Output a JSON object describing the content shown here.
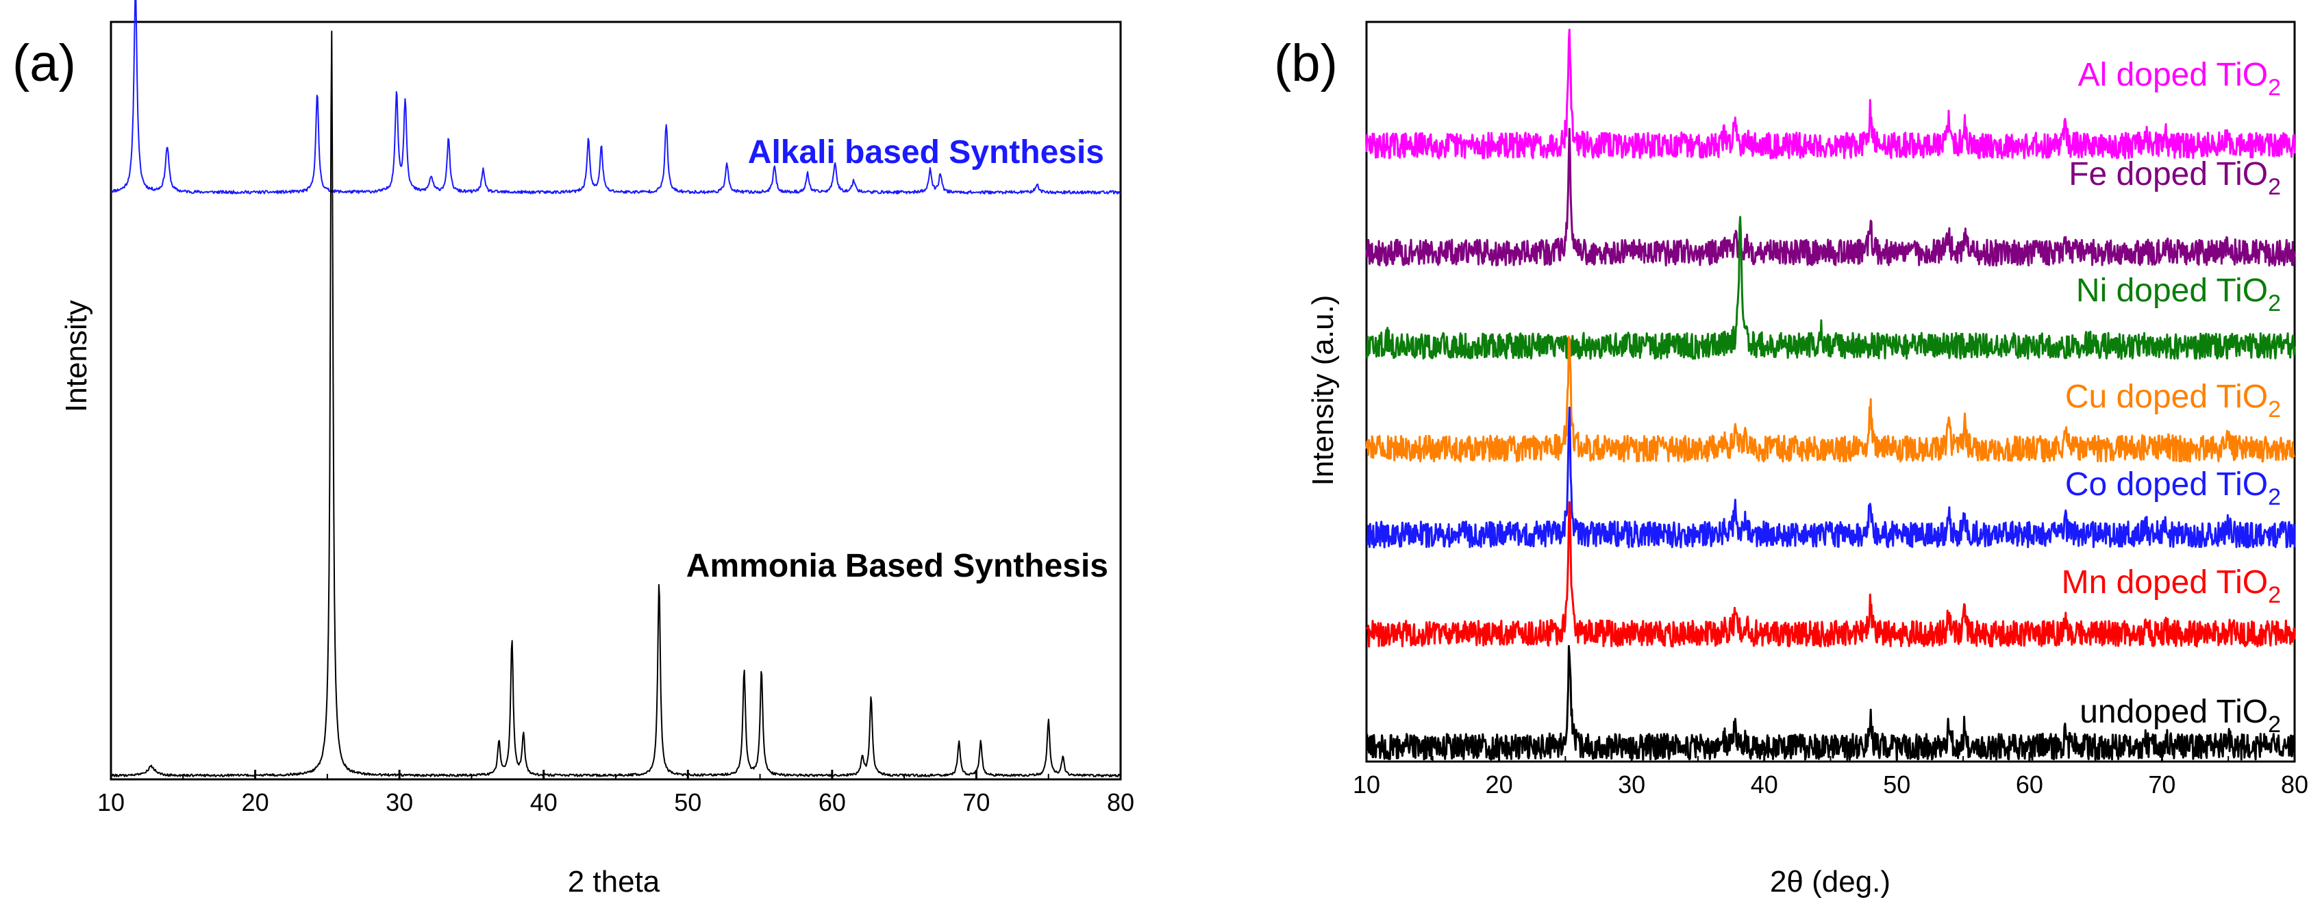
{
  "chart_data": [
    {
      "panel_label": "(a)",
      "type": "line",
      "xlabel": "2 theta",
      "ylabel": "Intensity",
      "xlim": [
        10,
        80
      ],
      "xticks": [
        10,
        20,
        30,
        40,
        50,
        60,
        70,
        80
      ],
      "y_ticks_shown": false,
      "series": [
        {
          "name": "Alkali based Synthesis",
          "color": "#1a1aff",
          "label_color": "#1a1aff",
          "baseline": 0.775,
          "noise": 0.004,
          "peaks": [
            {
              "x": 11.7,
              "h": 0.27,
              "w": 0.13
            },
            {
              "x": 13.9,
              "h": 0.06,
              "w": 0.15
            },
            {
              "x": 24.3,
              "h": 0.13,
              "w": 0.12
            },
            {
              "x": 29.8,
              "h": 0.13,
              "w": 0.12
            },
            {
              "x": 30.4,
              "h": 0.12,
              "w": 0.12
            },
            {
              "x": 32.2,
              "h": 0.02,
              "w": 0.15
            },
            {
              "x": 33.4,
              "h": 0.07,
              "w": 0.12
            },
            {
              "x": 35.8,
              "h": 0.03,
              "w": 0.12
            },
            {
              "x": 43.1,
              "h": 0.07,
              "w": 0.12
            },
            {
              "x": 44.0,
              "h": 0.06,
              "w": 0.12
            },
            {
              "x": 48.5,
              "h": 0.09,
              "w": 0.12
            },
            {
              "x": 52.7,
              "h": 0.04,
              "w": 0.12
            },
            {
              "x": 56.0,
              "h": 0.035,
              "w": 0.12
            },
            {
              "x": 58.3,
              "h": 0.025,
              "w": 0.12
            },
            {
              "x": 60.2,
              "h": 0.04,
              "w": 0.13
            },
            {
              "x": 61.5,
              "h": 0.015,
              "w": 0.15
            },
            {
              "x": 66.8,
              "h": 0.03,
              "w": 0.12
            },
            {
              "x": 67.5,
              "h": 0.025,
              "w": 0.12
            },
            {
              "x": 74.2,
              "h": 0.01,
              "w": 0.15
            }
          ]
        },
        {
          "name": "Ammonia Based Synthesis",
          "color": "#000000",
          "label_color": "#000000",
          "baseline": 0.005,
          "noise": 0.003,
          "peaks": [
            {
              "x": 12.8,
              "h": 0.012,
              "w": 0.3
            },
            {
              "x": 25.3,
              "h": 0.985,
              "w": 0.11
            },
            {
              "x": 36.9,
              "h": 0.045,
              "w": 0.11
            },
            {
              "x": 37.8,
              "h": 0.18,
              "w": 0.11
            },
            {
              "x": 38.6,
              "h": 0.055,
              "w": 0.11
            },
            {
              "x": 48.0,
              "h": 0.255,
              "w": 0.11
            },
            {
              "x": 53.9,
              "h": 0.14,
              "w": 0.11
            },
            {
              "x": 55.1,
              "h": 0.14,
              "w": 0.11
            },
            {
              "x": 62.1,
              "h": 0.025,
              "w": 0.11
            },
            {
              "x": 62.7,
              "h": 0.105,
              "w": 0.11
            },
            {
              "x": 68.8,
              "h": 0.045,
              "w": 0.11
            },
            {
              "x": 70.3,
              "h": 0.045,
              "w": 0.11
            },
            {
              "x": 75.0,
              "h": 0.075,
              "w": 0.11
            },
            {
              "x": 76.0,
              "h": 0.025,
              "w": 0.11
            }
          ]
        }
      ]
    },
    {
      "panel_label": "(b)",
      "type": "line",
      "xlabel": "2θ (deg.)",
      "ylabel": "Intensity (a.u.)",
      "xlim": [
        10,
        80
      ],
      "xticks": [
        10,
        20,
        30,
        40,
        50,
        60,
        70,
        80
      ],
      "y_ticks_shown": false,
      "series": [
        {
          "name": "Al doped TiO2",
          "label_text": "Al doped TiO",
          "label_sub": "2",
          "color": "#ff00ff",
          "offset": 0.833,
          "scale": 0.16,
          "peaks": [
            {
              "x": 25.3,
              "h": 1.0,
              "w": 0.11
            },
            {
              "x": 37.0,
              "h": 0.08,
              "w": 0.12
            },
            {
              "x": 37.8,
              "h": 0.25,
              "w": 0.11
            },
            {
              "x": 38.6,
              "h": 0.1,
              "w": 0.11
            },
            {
              "x": 48.0,
              "h": 0.28,
              "w": 0.11
            },
            {
              "x": 53.9,
              "h": 0.2,
              "w": 0.11
            },
            {
              "x": 55.1,
              "h": 0.2,
              "w": 0.11
            },
            {
              "x": 62.7,
              "h": 0.16,
              "w": 0.11
            },
            {
              "x": 68.8,
              "h": 0.06,
              "w": 0.11
            },
            {
              "x": 70.3,
              "h": 0.07,
              "w": 0.11
            },
            {
              "x": 75.0,
              "h": 0.1,
              "w": 0.11
            }
          ]
        },
        {
          "name": "Fe doped TiO2",
          "label_text": "Fe doped TiO",
          "label_sub": "2",
          "color": "#800080",
          "offset": 0.688,
          "scale": 0.16,
          "peaks": [
            {
              "x": 25.3,
              "h": 1.0,
              "w": 0.11
            },
            {
              "x": 37.0,
              "h": 0.06,
              "w": 0.12
            },
            {
              "x": 37.8,
              "h": 0.2,
              "w": 0.11
            },
            {
              "x": 38.6,
              "h": 0.08,
              "w": 0.11
            },
            {
              "x": 48.0,
              "h": 0.24,
              "w": 0.11
            },
            {
              "x": 53.9,
              "h": 0.18,
              "w": 0.11
            },
            {
              "x": 55.1,
              "h": 0.17,
              "w": 0.11
            },
            {
              "x": 62.7,
              "h": 0.15,
              "w": 0.11
            },
            {
              "x": 68.8,
              "h": 0.05,
              "w": 0.11
            },
            {
              "x": 70.3,
              "h": 0.06,
              "w": 0.11
            },
            {
              "x": 75.0,
              "h": 0.08,
              "w": 0.11
            }
          ]
        },
        {
          "name": "Ni doped TiO2",
          "label_text": "Ni doped TiO",
          "label_sub": "2",
          "color": "#0a7d0a",
          "offset": 0.562,
          "scale": 0.18,
          "peaks": [
            {
              "x": 11.5,
              "h": 0.06,
              "w": 0.15
            },
            {
              "x": 29.6,
              "h": 0.03,
              "w": 0.2
            },
            {
              "x": 38.2,
              "h": 1.0,
              "w": 0.12
            },
            {
              "x": 44.3,
              "h": 0.1,
              "w": 0.13
            },
            {
              "x": 64.4,
              "h": 0.02,
              "w": 0.2
            }
          ]
        },
        {
          "name": "Cu doped TiO2",
          "label_text": "Cu doped TiO",
          "label_sub": "2",
          "color": "#ff8000",
          "offset": 0.423,
          "scale": 0.16,
          "peaks": [
            {
              "x": 25.3,
              "h": 1.0,
              "w": 0.11
            },
            {
              "x": 37.0,
              "h": 0.07,
              "w": 0.12
            },
            {
              "x": 37.8,
              "h": 0.22,
              "w": 0.11
            },
            {
              "x": 38.6,
              "h": 0.09,
              "w": 0.11
            },
            {
              "x": 48.0,
              "h": 0.34,
              "w": 0.11
            },
            {
              "x": 53.9,
              "h": 0.22,
              "w": 0.11
            },
            {
              "x": 55.1,
              "h": 0.2,
              "w": 0.11
            },
            {
              "x": 62.7,
              "h": 0.14,
              "w": 0.11
            },
            {
              "x": 68.8,
              "h": 0.06,
              "w": 0.11
            },
            {
              "x": 70.3,
              "h": 0.07,
              "w": 0.11
            },
            {
              "x": 75.0,
              "h": 0.11,
              "w": 0.11
            }
          ]
        },
        {
          "name": "Co doped TiO2",
          "label_text": "Co doped TiO",
          "label_sub": "2",
          "color": "#1a1aff",
          "offset": 0.307,
          "scale": 0.16,
          "peaks": [
            {
              "x": 25.3,
              "h": 1.0,
              "w": 0.11
            },
            {
              "x": 37.0,
              "h": 0.07,
              "w": 0.12
            },
            {
              "x": 37.8,
              "h": 0.22,
              "w": 0.11
            },
            {
              "x": 38.6,
              "h": 0.09,
              "w": 0.11
            },
            {
              "x": 48.0,
              "h": 0.3,
              "w": 0.11
            },
            {
              "x": 53.9,
              "h": 0.2,
              "w": 0.11
            },
            {
              "x": 55.1,
              "h": 0.18,
              "w": 0.11
            },
            {
              "x": 62.7,
              "h": 0.12,
              "w": 0.11
            },
            {
              "x": 68.8,
              "h": 0.06,
              "w": 0.11
            },
            {
              "x": 70.3,
              "h": 0.07,
              "w": 0.11
            },
            {
              "x": 75.0,
              "h": 0.09,
              "w": 0.11
            }
          ]
        },
        {
          "name": "Mn doped TiO2",
          "label_text": "Mn doped TiO",
          "label_sub": "2",
          "color": "#ff0000",
          "offset": 0.173,
          "scale": 0.18,
          "peaks": [
            {
              "x": 25.3,
              "h": 1.0,
              "w": 0.11
            },
            {
              "x": 37.0,
              "h": 0.07,
              "w": 0.12
            },
            {
              "x": 37.8,
              "h": 0.18,
              "w": 0.11
            },
            {
              "x": 38.6,
              "h": 0.08,
              "w": 0.11
            },
            {
              "x": 48.0,
              "h": 0.22,
              "w": 0.11
            },
            {
              "x": 53.9,
              "h": 0.14,
              "w": 0.11
            },
            {
              "x": 55.1,
              "h": 0.13,
              "w": 0.11
            },
            {
              "x": 62.7,
              "h": 0.08,
              "w": 0.11
            },
            {
              "x": 68.8,
              "h": 0.04,
              "w": 0.11
            },
            {
              "x": 70.3,
              "h": 0.05,
              "w": 0.11
            },
            {
              "x": 75.0,
              "h": 0.06,
              "w": 0.11
            }
          ]
        },
        {
          "name": "undoped TiO2",
          "label_text": "undoped TiO",
          "label_sub": "2",
          "color": "#000000",
          "offset": 0.02,
          "scale": 0.14,
          "peaks": [
            {
              "x": 25.3,
              "h": 1.0,
              "w": 0.11
            },
            {
              "x": 37.0,
              "h": 0.06,
              "w": 0.12
            },
            {
              "x": 37.8,
              "h": 0.2,
              "w": 0.11
            },
            {
              "x": 38.6,
              "h": 0.08,
              "w": 0.11
            },
            {
              "x": 48.0,
              "h": 0.26,
              "w": 0.11
            },
            {
              "x": 53.9,
              "h": 0.2,
              "w": 0.11
            },
            {
              "x": 55.1,
              "h": 0.19,
              "w": 0.11
            },
            {
              "x": 62.7,
              "h": 0.12,
              "w": 0.11
            },
            {
              "x": 68.8,
              "h": 0.05,
              "w": 0.11
            },
            {
              "x": 70.3,
              "h": 0.06,
              "w": 0.11
            },
            {
              "x": 75.0,
              "h": 0.09,
              "w": 0.11
            }
          ]
        }
      ]
    }
  ]
}
